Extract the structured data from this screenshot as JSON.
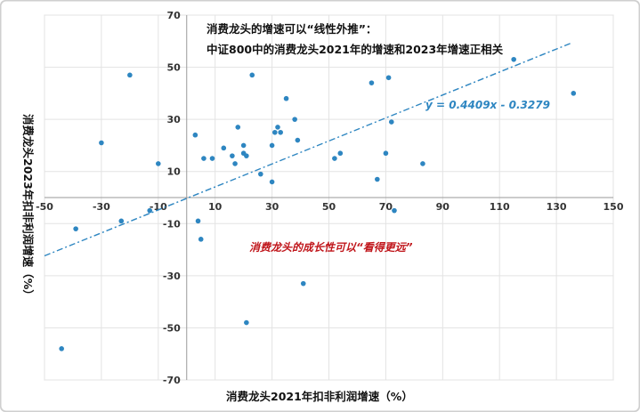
{
  "chart_data": {
    "type": "scatter",
    "title_line1": "消费龙头的增速可以“线性外推”：",
    "title_line2": "中证800中的消费龙头2021年的增速和2023年增速正相关",
    "xlabel": "消费龙头2021年扣非利润增速（%）",
    "ylabel": "消费龙头2023年扣非利润增速（%）",
    "xlim": [
      -50,
      150
    ],
    "ylim": [
      -70,
      70
    ],
    "x_ticks": [
      -50,
      -30,
      -10,
      10,
      30,
      50,
      70,
      90,
      110,
      130,
      150
    ],
    "y_ticks": [
      -70,
      -50,
      -30,
      -10,
      10,
      30,
      50,
      70
    ],
    "trendline": {
      "slope": 0.4409,
      "intercept": -0.3279,
      "equation": "y = 0.4409x - 0.3279"
    },
    "annotation": "消费龙头的成长性可以“看得更远”",
    "colors": {
      "points": "#2e86c1",
      "trendline": "#2e86c1",
      "annotation": "#c0161b"
    },
    "points": [
      {
        "x": -44,
        "y": -58
      },
      {
        "x": -39,
        "y": -12
      },
      {
        "x": -30,
        "y": 21
      },
      {
        "x": -23,
        "y": -9
      },
      {
        "x": -20,
        "y": 47
      },
      {
        "x": -13,
        "y": -5
      },
      {
        "x": -10,
        "y": 13
      },
      {
        "x": 3,
        "y": 24
      },
      {
        "x": 4,
        "y": -9
      },
      {
        "x": 5,
        "y": -16
      },
      {
        "x": 6,
        "y": 15
      },
      {
        "x": 9,
        "y": 15
      },
      {
        "x": 13,
        "y": 19
      },
      {
        "x": 16,
        "y": 16
      },
      {
        "x": 17,
        "y": 13
      },
      {
        "x": 18,
        "y": 27
      },
      {
        "x": 20,
        "y": 17
      },
      {
        "x": 20,
        "y": 20
      },
      {
        "x": 21,
        "y": 16
      },
      {
        "x": 21,
        "y": -48
      },
      {
        "x": 23,
        "y": 47
      },
      {
        "x": 26,
        "y": 9
      },
      {
        "x": 30,
        "y": 6
      },
      {
        "x": 30,
        "y": 20
      },
      {
        "x": 31,
        "y": 25
      },
      {
        "x": 32,
        "y": 27
      },
      {
        "x": 33,
        "y": 25
      },
      {
        "x": 35,
        "y": 38
      },
      {
        "x": 38,
        "y": 30
      },
      {
        "x": 39,
        "y": 22
      },
      {
        "x": 41,
        "y": -33
      },
      {
        "x": 52,
        "y": 15
      },
      {
        "x": 54,
        "y": 17
      },
      {
        "x": 65,
        "y": 44
      },
      {
        "x": 67,
        "y": 7
      },
      {
        "x": 70,
        "y": 17
      },
      {
        "x": 71,
        "y": 46
      },
      {
        "x": 72,
        "y": 29
      },
      {
        "x": 73,
        "y": -5
      },
      {
        "x": 83,
        "y": 13
      },
      {
        "x": 115,
        "y": 53
      },
      {
        "x": 136,
        "y": 40
      }
    ]
  }
}
